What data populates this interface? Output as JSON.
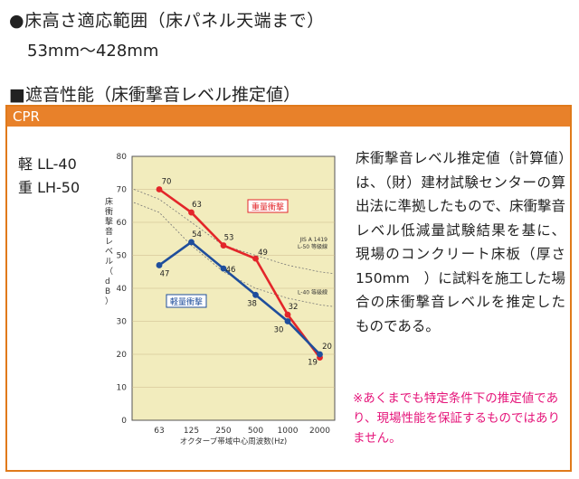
{
  "heading1": "●床高さ適応範囲（床パネル天端まで）",
  "heading1_sub": "53mm〜428mm",
  "heading2": "■遮音性能（床衝撃音レベル推定値）",
  "box_title": "CPR",
  "grade_light": "軽 LL-40",
  "grade_heavy": "重 LH-50",
  "description": "床衝撃音レベル推定値（計算値）は、（財）建材試験センターの算出法に準拠したもので、床衝撃音レベル低減量試験結果を基に、現場のコンクリート床板（厚さ150mm　）に試料を施工した場合の床衝撃音レベルを推定したものである。",
  "note": "※あくまでも特定条件下の推定値であり、現場性能を保証するものではありません。",
  "colors": {
    "heavy": "#e3262a",
    "light": "#1f4e9c",
    "bg": "#f2ecbd",
    "accent": "#e8812a",
    "note": "#e5157a"
  },
  "chart_data": {
    "type": "line",
    "ylabel": "床衝撃音レベル（dB）",
    "xlabel": "オクターブ帯域中心周波数(Hz)",
    "categories": [
      "63",
      "125",
      "250",
      "500",
      "1000",
      "2000"
    ],
    "yticks": [
      0,
      10,
      20,
      30,
      40,
      50,
      60,
      70,
      80
    ],
    "ylim": [
      0,
      80
    ],
    "series": [
      {
        "name": "重量衝撃",
        "values": [
          70,
          63,
          53,
          49,
          32,
          19
        ],
        "color": "#e3262a"
      },
      {
        "name": "軽量衝撃",
        "values": [
          47,
          54,
          46,
          38,
          30,
          20
        ],
        "color": "#1f4e9c"
      }
    ],
    "reference_lines": [
      {
        "label_lines": [
          "JIS A 1419",
          "L-50 等級線"
        ],
        "values": [
          67,
          60,
          53,
          50,
          47,
          45
        ]
      },
      {
        "label_lines": [
          "L-40 等級線"
        ],
        "values": [
          63,
          53,
          45,
          40,
          37,
          35
        ]
      }
    ]
  }
}
